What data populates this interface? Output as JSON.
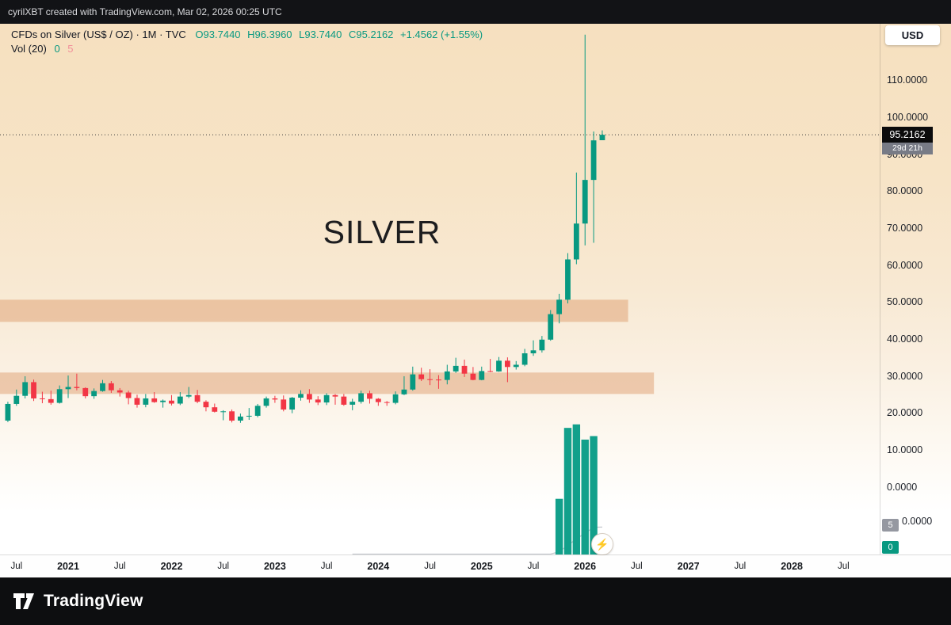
{
  "top_bar": {
    "attribution": "cyrilXBT created with TradingView.com, Mar 02, 2026 00:25 UTC"
  },
  "legend": {
    "symbol": "CFDs on Silver (US$ / OZ) · 1M · TVC",
    "open": "O93.7440",
    "high": "H96.3960",
    "low": "L93.7440",
    "close": "C95.2162",
    "change": "+1.4562 (+1.55%)",
    "vol_label": "Vol (20)",
    "vol_value": "0",
    "vol_ma": "5"
  },
  "watermark": "SILVER",
  "price_axis": {
    "currency": "USD",
    "last_price": "95.2162",
    "countdown": "29d 21h",
    "vol_ma_value": "5",
    "vol_value": "0",
    "extra_label": {
      "text": "0.0000",
      "y": 658
    }
  },
  "footer": {
    "brand": "TradingView"
  },
  "colors": {
    "up": "#089981",
    "down": "#f23645",
    "volume_bar": "#12a08b",
    "zone_fill": "rgba(217,144,91,0.42)",
    "price_line": "#3c3c3c",
    "vol_ma_line": "#c5c8ce"
  },
  "chart_data": {
    "type": "candlestick",
    "title": "CFDs on Silver (US$ / OZ) · 1M · TVC",
    "interval": "1M",
    "symbol_watermark": "SILVER",
    "start_month": "2020-06",
    "current_price": 95.2162,
    "ohlc_current": {
      "open": 93.744,
      "high": 96.396,
      "low": 93.744,
      "close": 95.2162,
      "change": 1.4562,
      "change_pct": 1.55
    },
    "price_axis_ticks": [
      110,
      100,
      90,
      80,
      70,
      60,
      50,
      40,
      30,
      20,
      10,
      0
    ],
    "ylim": [
      0,
      125
    ],
    "volume_ma_window": 20,
    "volume_scale_ticks": [
      5,
      0
    ],
    "candles": [
      [
        17.9,
        23.0,
        17.5,
        22.4
      ],
      [
        22.4,
        26.3,
        21.9,
        24.6
      ],
      [
        24.6,
        29.9,
        23.9,
        28.3
      ],
      [
        28.3,
        29.0,
        23.2,
        23.9
      ],
      [
        23.9,
        25.7,
        22.6,
        23.7
      ],
      [
        23.7,
        26.0,
        22.2,
        22.7
      ],
      [
        22.7,
        27.4,
        22.5,
        26.4
      ],
      [
        26.4,
        30.1,
        24.0,
        27.0
      ],
      [
        27.0,
        30.6,
        26.1,
        26.7
      ],
      [
        26.7,
        26.9,
        23.9,
        24.5
      ],
      [
        24.5,
        26.6,
        23.8,
        25.9
      ],
      [
        25.9,
        28.9,
        25.7,
        28.0
      ],
      [
        28.0,
        28.6,
        25.4,
        26.1
      ],
      [
        26.1,
        26.7,
        24.4,
        25.5
      ],
      [
        25.5,
        26.0,
        22.3,
        24.0
      ],
      [
        24.0,
        24.9,
        21.4,
        22.2
      ],
      [
        22.2,
        25.1,
        21.5,
        23.9
      ],
      [
        23.9,
        25.6,
        22.7,
        22.9
      ],
      [
        22.9,
        23.6,
        21.4,
        23.3
      ],
      [
        23.3,
        24.8,
        22.0,
        22.5
      ],
      [
        22.5,
        25.6,
        22.1,
        24.4
      ],
      [
        24.4,
        27.0,
        24.0,
        24.8
      ],
      [
        24.8,
        26.2,
        22.6,
        23.0
      ],
      [
        23.0,
        23.4,
        20.4,
        21.5
      ],
      [
        21.5,
        22.5,
        20.1,
        20.3
      ],
      [
        20.3,
        20.7,
        18.0,
        20.4
      ],
      [
        20.4,
        20.9,
        17.4,
        17.9
      ],
      [
        17.9,
        19.8,
        17.3,
        19.0
      ],
      [
        19.0,
        21.3,
        18.1,
        19.2
      ],
      [
        19.2,
        22.4,
        18.8,
        21.9
      ],
      [
        21.9,
        24.4,
        21.4,
        23.9
      ],
      [
        23.9,
        24.6,
        22.7,
        23.6
      ],
      [
        23.6,
        24.7,
        20.4,
        20.9
      ],
      [
        20.9,
        24.3,
        19.9,
        24.1
      ],
      [
        24.1,
        26.1,
        23.3,
        25.1
      ],
      [
        25.1,
        26.4,
        22.7,
        23.6
      ],
      [
        23.6,
        24.5,
        22.1,
        22.8
      ],
      [
        22.8,
        25.3,
        22.1,
        24.8
      ],
      [
        24.8,
        25.1,
        22.2,
        24.4
      ],
      [
        24.4,
        25.1,
        21.9,
        22.2
      ],
      [
        22.2,
        23.8,
        20.7,
        23.0
      ],
      [
        23.0,
        26.0,
        22.5,
        25.3
      ],
      [
        25.3,
        26.0,
        22.5,
        23.8
      ],
      [
        23.8,
        24.0,
        21.9,
        22.9
      ],
      [
        22.9,
        23.2,
        21.9,
        22.7
      ],
      [
        22.7,
        25.8,
        22.3,
        25.0
      ],
      [
        25.0,
        29.9,
        24.8,
        26.3
      ],
      [
        26.3,
        32.5,
        26.0,
        30.4
      ],
      [
        30.4,
        32.2,
        28.6,
        29.1
      ],
      [
        29.1,
        31.8,
        27.5,
        29.0
      ],
      [
        29.0,
        30.2,
        26.5,
        28.9
      ],
      [
        28.9,
        33.0,
        27.7,
        31.2
      ],
      [
        31.2,
        34.9,
        30.8,
        32.7
      ],
      [
        32.7,
        34.4,
        29.7,
        30.6
      ],
      [
        30.6,
        32.4,
        28.8,
        28.9
      ],
      [
        28.9,
        32.5,
        28.8,
        31.3
      ],
      [
        31.3,
        34.6,
        31.0,
        31.2
      ],
      [
        31.2,
        35.1,
        31.1,
        34.1
      ],
      [
        34.1,
        35.0,
        28.3,
        32.4
      ],
      [
        32.4,
        34.0,
        31.7,
        33.0
      ],
      [
        33.0,
        37.3,
        32.6,
        36.1
      ],
      [
        36.1,
        39.6,
        35.4,
        36.9
      ],
      [
        36.9,
        40.8,
        36.3,
        39.8
      ],
      [
        39.8,
        47.8,
        39.5,
        46.7
      ],
      [
        46.7,
        52.2,
        44.2,
        50.6
      ],
      [
        50.6,
        63.2,
        49.6,
        61.5
      ],
      [
        61.5,
        85.0,
        60.2,
        71.2
      ],
      [
        71.2,
        122.3,
        65.3,
        83.0
      ],
      [
        83.0,
        96.1,
        66.0,
        93.7
      ],
      [
        93.744,
        96.396,
        93.744,
        95.2162
      ]
    ],
    "volumes": [
      0,
      0,
      0,
      0,
      0,
      0,
      0,
      0,
      0,
      0,
      0,
      0,
      0,
      0,
      0,
      0,
      0,
      0,
      0,
      0,
      0,
      0,
      0,
      0,
      0,
      0,
      0,
      0,
      0,
      0,
      0,
      0,
      0,
      0,
      0,
      0,
      0,
      0,
      0,
      0,
      0,
      0,
      0,
      0,
      0,
      0,
      0,
      0,
      0,
      0,
      0,
      0,
      0,
      0,
      0,
      0,
      0,
      0,
      0,
      0,
      0,
      0,
      0,
      0,
      9.5,
      21.6,
      22.2,
      19.6,
      20.2,
      0.35
    ],
    "zones": [
      {
        "price_top": 50.6,
        "price_bottom": 44.6,
        "end_month_index": 72
      },
      {
        "price_top": 30.9,
        "price_bottom": 25.1,
        "end_month_index": 75
      }
    ],
    "time_ticks": [
      {
        "label": "Jul",
        "m": 1
      },
      {
        "label": "2021",
        "m": 7,
        "bold": true
      },
      {
        "label": "Jul",
        "m": 13
      },
      {
        "label": "2022",
        "m": 19,
        "bold": true
      },
      {
        "label": "Jul",
        "m": 25
      },
      {
        "label": "2023",
        "m": 31,
        "bold": true
      },
      {
        "label": "Jul",
        "m": 37
      },
      {
        "label": "2024",
        "m": 43,
        "bold": true
      },
      {
        "label": "Jul",
        "m": 49
      },
      {
        "label": "2025",
        "m": 55,
        "bold": true
      },
      {
        "label": "Jul",
        "m": 61
      },
      {
        "label": "2026",
        "m": 67,
        "bold": true
      },
      {
        "label": "Jul",
        "m": 73
      },
      {
        "label": "2027",
        "m": 79,
        "bold": true
      },
      {
        "label": "Jul",
        "m": 85
      },
      {
        "label": "2028",
        "m": 91,
        "bold": true
      },
      {
        "label": "Jul",
        "m": 97
      }
    ]
  }
}
